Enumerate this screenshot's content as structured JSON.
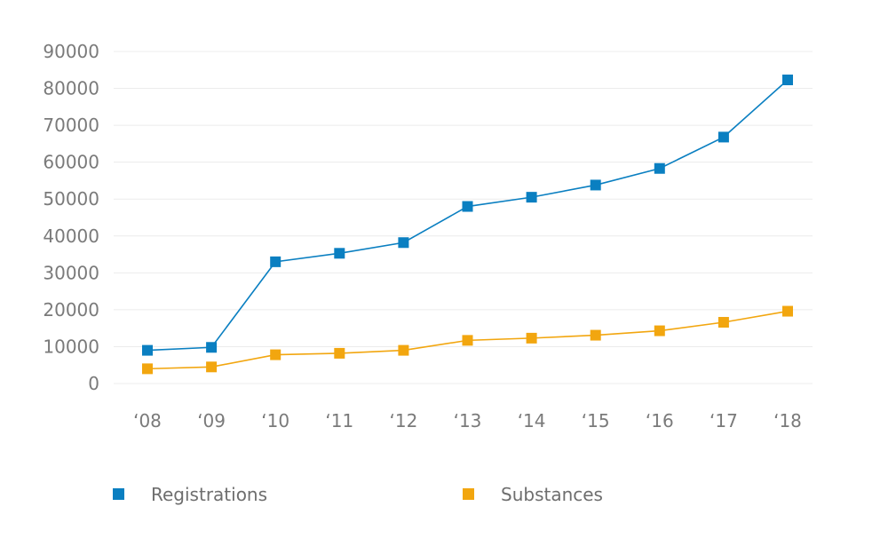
{
  "chart_data": {
    "type": "line",
    "title": "",
    "xlabel": "",
    "ylabel": "",
    "categories": [
      "‘08",
      "‘09",
      "‘10",
      "‘11",
      "‘12",
      "‘13",
      "‘14",
      "‘15",
      "‘16",
      "‘17",
      "‘18"
    ],
    "yticks": [
      "0",
      "10000",
      "20000",
      "30000",
      "40000",
      "50000",
      "60000",
      "70000",
      "80000",
      "90000"
    ],
    "ylim": [
      0,
      90000
    ],
    "grid": true,
    "legend_position": "bottom",
    "series": [
      {
        "name": "Registrations",
        "color": "#0a7fc1",
        "values": [
          9000,
          9800,
          33000,
          35300,
          38200,
          48000,
          50500,
          53800,
          58300,
          66800,
          82300
        ]
      },
      {
        "name": "Substances",
        "color": "#f2a60f",
        "values": [
          4000,
          4500,
          7800,
          8200,
          9000,
          11700,
          12300,
          13100,
          14300,
          16600,
          19600
        ]
      }
    ]
  }
}
